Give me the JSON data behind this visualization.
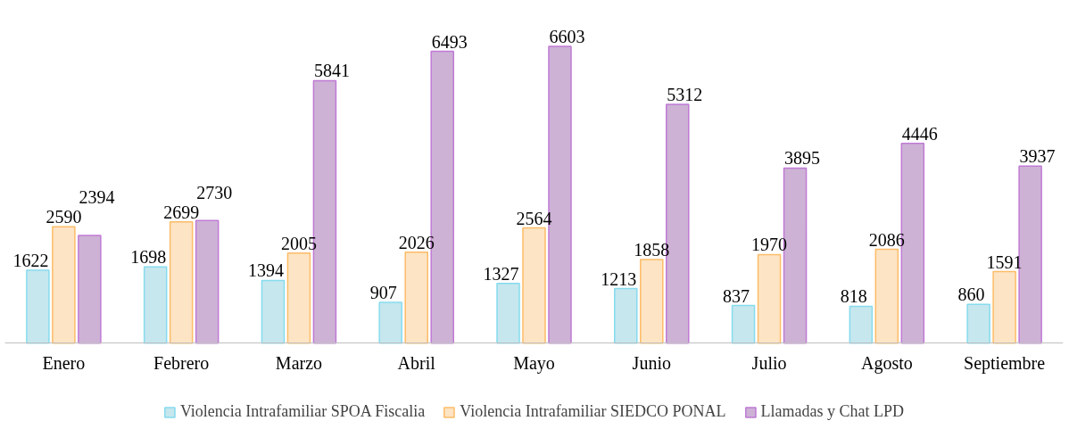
{
  "chart_data": {
    "type": "bar",
    "categories": [
      "Enero",
      "Febrero",
      "Marzo",
      "Abril",
      "Mayo",
      "Junio",
      "Julio",
      "Agosto",
      "Septiembre"
    ],
    "series": [
      {
        "name": "Violencia Intrafamiliar SPOA Fiscalia",
        "color": "#c6e7ee",
        "values": [
          1622,
          1698,
          1394,
          907,
          1327,
          1213,
          837,
          818,
          860
        ]
      },
      {
        "name": "Violencia Intrafamiliar SIEDCO PONAL",
        "color": "#fde4c4",
        "values": [
          2590,
          2699,
          2005,
          2026,
          2564,
          1858,
          1970,
          2086,
          1591
        ]
      },
      {
        "name": "Llamadas y Chat LPD",
        "color": "#cdb2d5",
        "values": [
          2394,
          2730,
          5841,
          6493,
          6603,
          5312,
          3895,
          4446,
          3937
        ]
      }
    ],
    "data_labels": true,
    "legend": "bottom"
  }
}
